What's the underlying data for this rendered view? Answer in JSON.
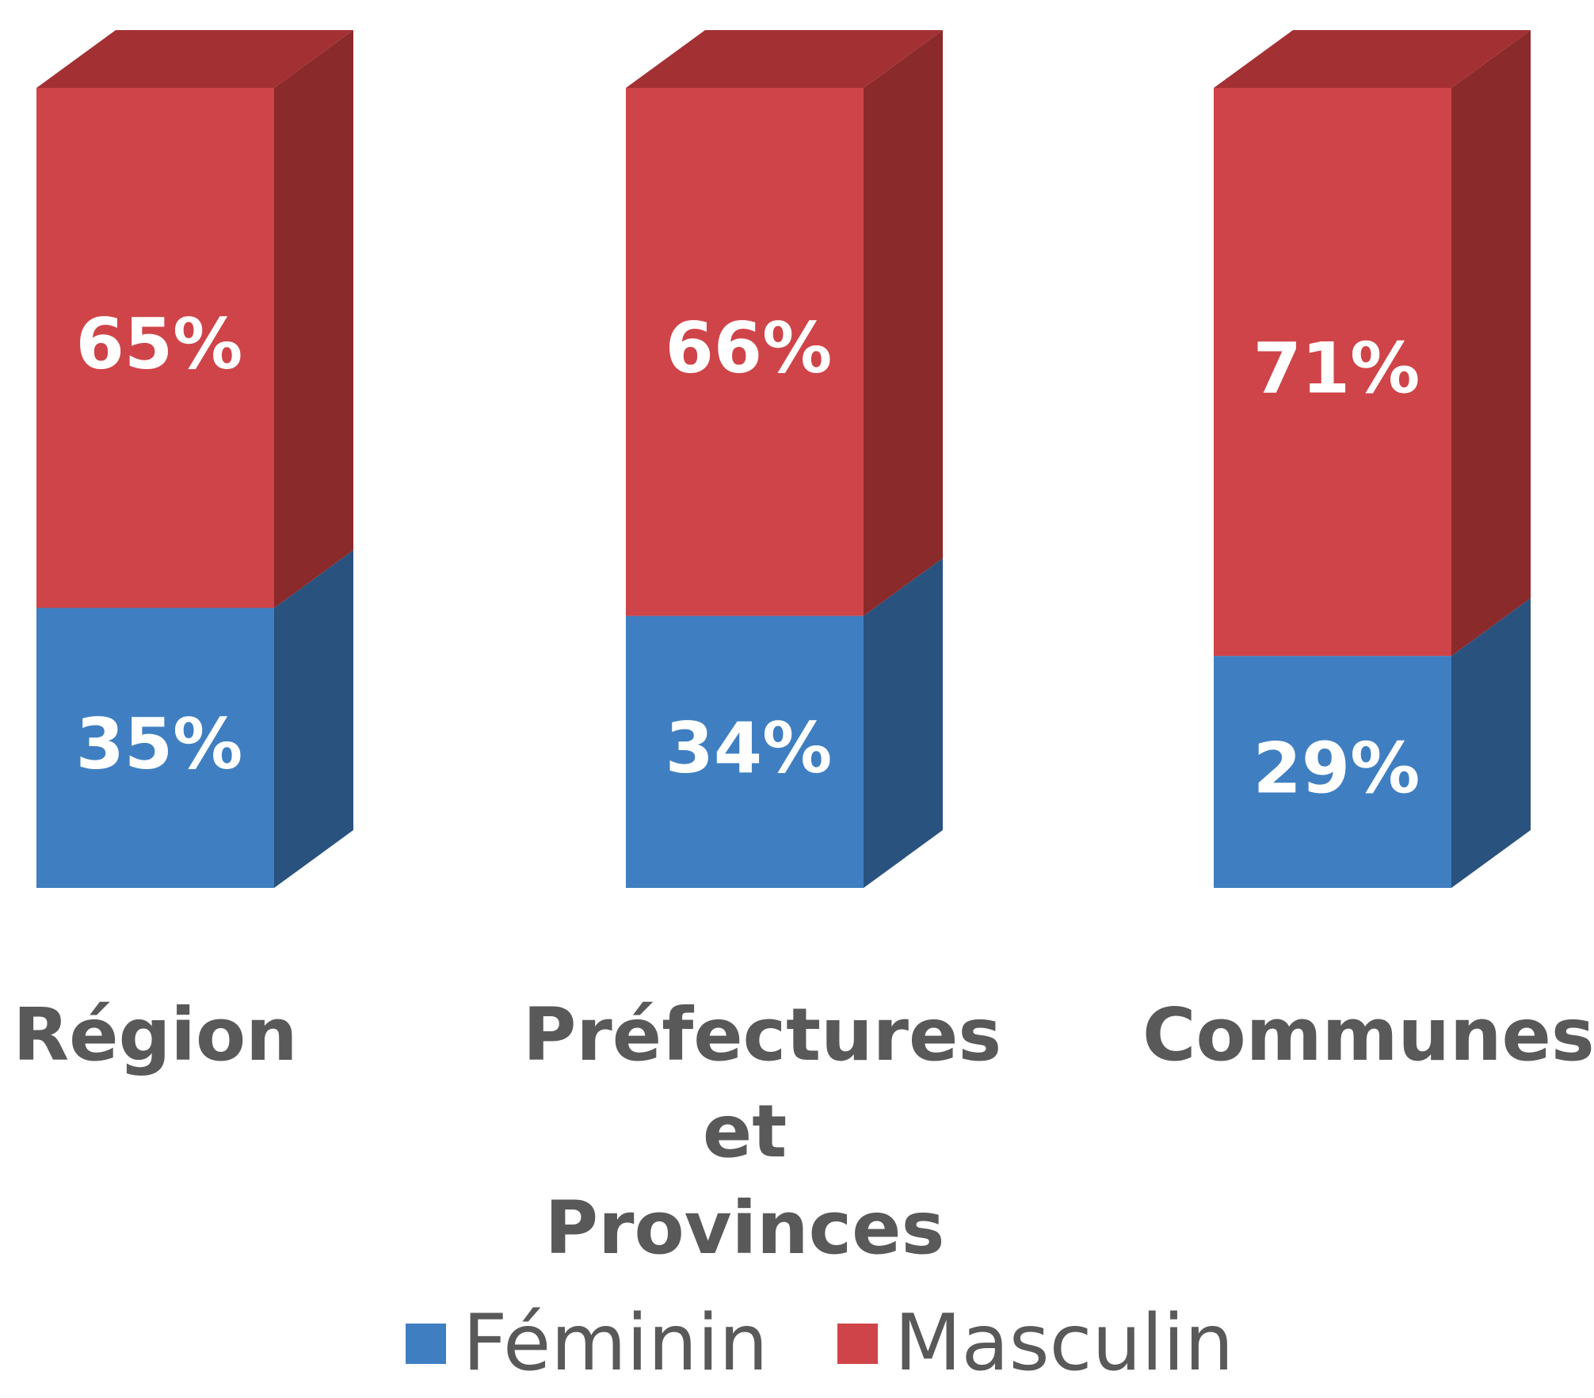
{
  "chart_data": {
    "type": "stacked_bar_3d",
    "categories": [
      "Région",
      "Préfectures et Provinces",
      "Communes"
    ],
    "ylim": [
      0,
      100
    ],
    "legend": "bottom",
    "series": [
      {
        "name": "Féminin",
        "color": "#3f7fc1",
        "side_color": "#2a527e",
        "values": [
          35,
          34,
          29
        ],
        "value_labels": [
          "35%",
          "34%",
          "29%"
        ]
      },
      {
        "name": "Masculin",
        "color": "#cf4448",
        "side_color": "#8b2a2b",
        "top_color": "#a33134",
        "values": [
          65,
          66,
          71
        ],
        "value_labels": [
          "65%",
          "66%",
          "71%"
        ]
      }
    ]
  }
}
